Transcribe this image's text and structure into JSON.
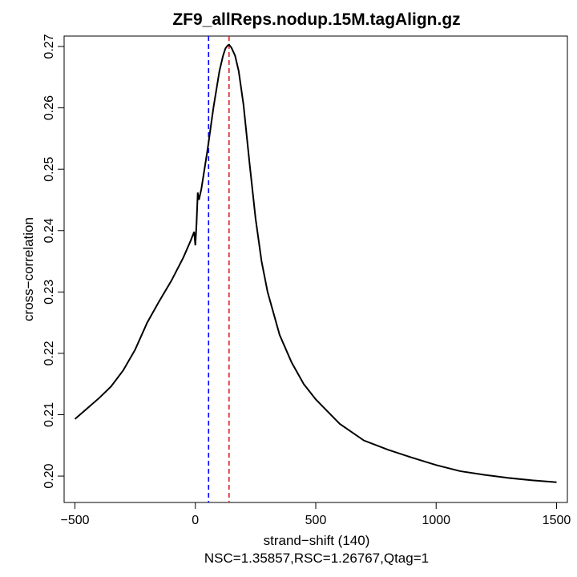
{
  "chart_data": {
    "type": "line",
    "title": "ZF9_allReps.nodup.15M.tagAlign.gz",
    "xlabel": "strand−shift (140)",
    "subtitle": "NSC=1.35857,RSC=1.26767,Qtag=1",
    "ylabel": "cross−correlation",
    "xlim": [
      -545,
      1545
    ],
    "ylim": [
      0.1957,
      0.2717
    ],
    "x_ticks": [
      -500,
      0,
      500,
      1000,
      1500
    ],
    "x_tick_labels": [
      "−500",
      "0",
      "500",
      "1000",
      "1500"
    ],
    "y_ticks": [
      0.2,
      0.21,
      0.22,
      0.23,
      0.24,
      0.25,
      0.26,
      0.27
    ],
    "y_tick_labels": [
      "0.20",
      "0.21",
      "0.22",
      "0.23",
      "0.24",
      "0.25",
      "0.26",
      "0.27"
    ],
    "grid": false,
    "series": [
      {
        "color": "#000000",
        "x": [
          -500,
          -450,
          -400,
          -350,
          -300,
          -250,
          -200,
          -150,
          -100,
          -50,
          -20,
          -5,
          0,
          5,
          10,
          15,
          25,
          50,
          75,
          100,
          115,
          125,
          135,
          140,
          150,
          165,
          180,
          200,
          225,
          250,
          275,
          300,
          350,
          400,
          450,
          500,
          600,
          700,
          800,
          900,
          1000,
          1100,
          1200,
          1300,
          1400,
          1500
        ],
        "y": [
          0.2093,
          0.211,
          0.2127,
          0.2146,
          0.2172,
          0.2206,
          0.225,
          0.2285,
          0.2318,
          0.2356,
          0.2383,
          0.2398,
          0.2376,
          0.2412,
          0.2462,
          0.245,
          0.2468,
          0.253,
          0.26,
          0.266,
          0.2685,
          0.2697,
          0.2702,
          0.2703,
          0.2698,
          0.2685,
          0.266,
          0.2605,
          0.251,
          0.242,
          0.235,
          0.23,
          0.223,
          0.2185,
          0.215,
          0.2125,
          0.2085,
          0.2058,
          0.2043,
          0.203,
          0.2018,
          0.2008,
          0.2002,
          0.1997,
          0.1993,
          0.199
        ]
      }
    ],
    "vlines": [
      {
        "x": 55,
        "color": "#0000ff",
        "style": "dashed"
      },
      {
        "x": 140,
        "color": "#dd2222",
        "style": "dashed"
      }
    ]
  }
}
